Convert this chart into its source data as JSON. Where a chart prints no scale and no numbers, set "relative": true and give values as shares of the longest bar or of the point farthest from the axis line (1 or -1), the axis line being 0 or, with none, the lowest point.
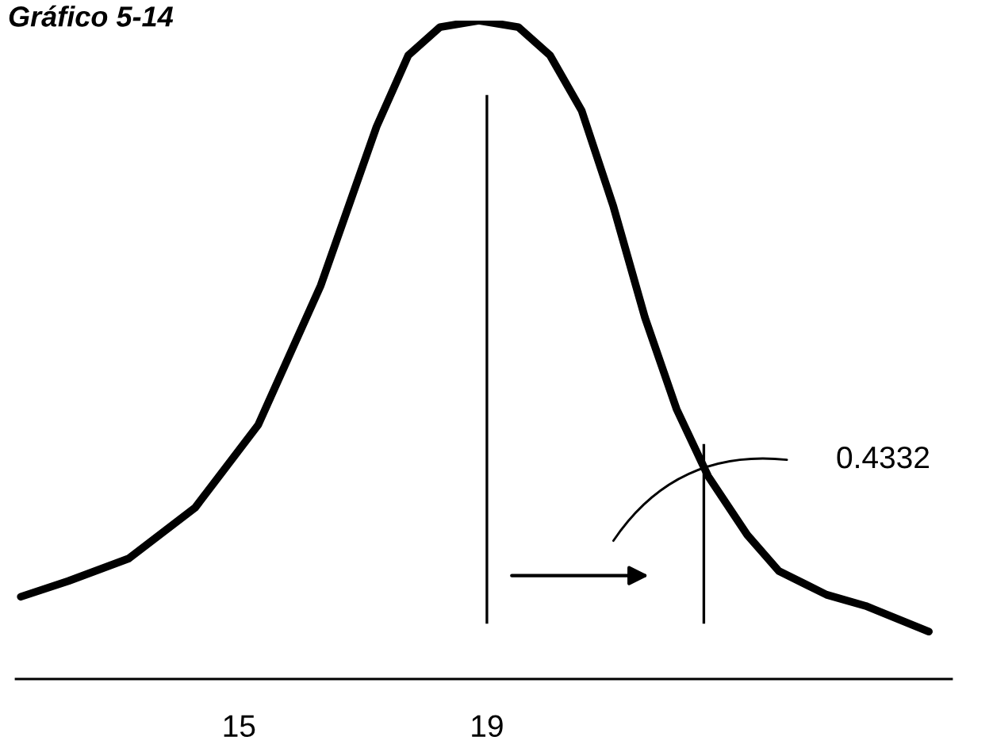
{
  "chart_data": {
    "type": "line",
    "title": "Gráfico 5-14",
    "relative": true,
    "x": [
      11.48,
      12.25,
      13.22,
      14.29,
      15.31,
      16.32,
      17.22,
      17.73,
      18.24,
      18.87,
      19.51,
      20.02,
      20.53,
      21.04,
      21.55,
      22.06,
      22.57,
      23.2,
      23.71,
      24.48,
      25.11,
      26.13
    ],
    "series": [
      {
        "color": "#000000",
        "values": [
          0.125,
          0.149,
          0.183,
          0.26,
          0.386,
          0.598,
          0.839,
          0.947,
          0.99,
          1,
          0.99,
          0.947,
          0.863,
          0.718,
          0.549,
          0.41,
          0.308,
          0.219,
          0.164,
          0.128,
          0.111,
          0.072
        ]
      }
    ],
    "xlim": [
      11.4,
      26.5
    ],
    "xticks": [
      15,
      19
    ],
    "tick_labels": "x",
    "ref_lines": [
      {
        "axis": "x",
        "value": 19,
        "color": "#000000"
      },
      {
        "axis": "x",
        "value": 22.5,
        "color": "#000000"
      }
    ],
    "annotations": [
      "0.4332"
    ],
    "grid": false,
    "legend": false,
    "marker": "none",
    "line_style": "solid"
  }
}
